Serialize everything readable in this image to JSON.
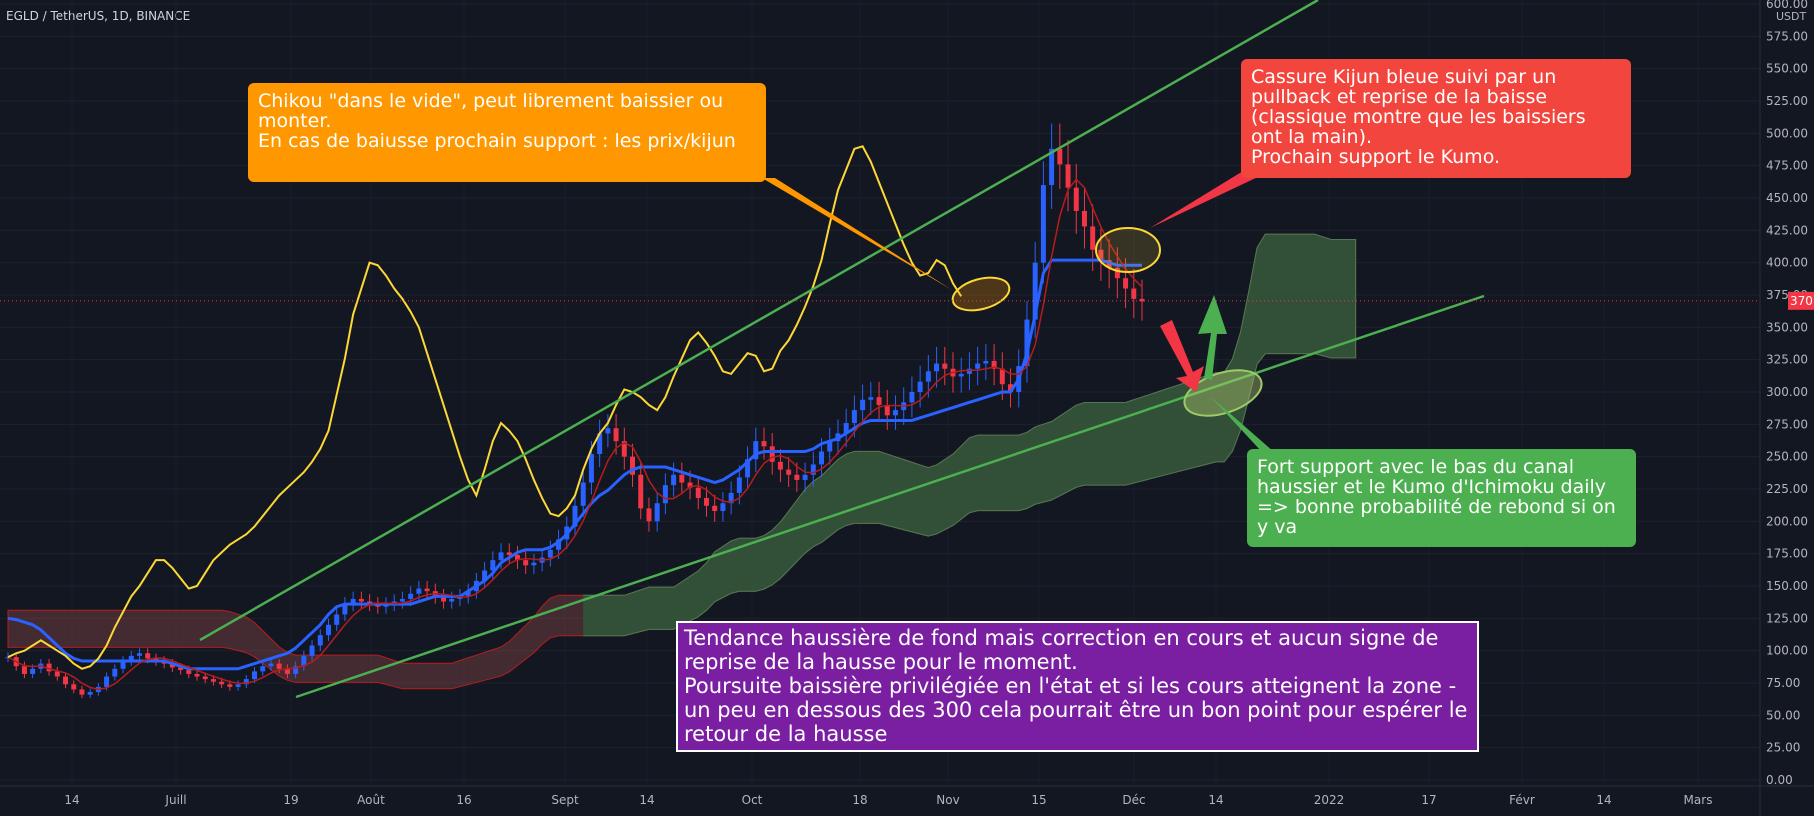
{
  "header": {
    "symbol": "EGLD / TetherUS, 1D, BINANCE",
    "unit": "USDT",
    "last_price": "370.47"
  },
  "notes": {
    "orange": "Chikou \"dans le vide\", peut librement baissier ou monter.\nEn cas de baiusse prochain support : les prix/kijun",
    "red": "Cassure Kijun bleue suivi par un pullback et reprise de la baisse (classique montre que les baissiers ont la main).\nProchain support le Kumo.",
    "green": "Fort support avec le bas du canal haussier et le Kumo d'Ichimoku daily => bonne probabilité de rebond si on y va",
    "purple": "Tendance haussière de fond mais correction en cours et aucun signe de reprise de la hausse pour le moment.\nPoursuite baissière privilégiée en l'état et si les cours atteignent la zone -un peu en dessous des 300 cela pourrait être un bon point pour espérer le retour de la hausse"
  },
  "colors": {
    "background": "#131722",
    "up": "#2962ff",
    "down": "#f23645",
    "chikou": "#fdd835",
    "kijun": "#2962ff",
    "tenkan": "#b71c1c",
    "channel": "#4caf50",
    "kumo_bear": "#a05050",
    "kumo_bull": "#2e5a3a",
    "price_tag": "#f23645"
  },
  "chart_data": {
    "type": "candlestick",
    "title": "EGLD / TetherUS, 1D, BINANCE",
    "ylim": [
      0,
      600
    ],
    "y_ticks": [
      "0.00",
      "25.00",
      "50.00",
      "75.00",
      "100.00",
      "125.00",
      "150.00",
      "175.00",
      "200.00",
      "225.00",
      "250.00",
      "275.00",
      "300.00",
      "325.00",
      "350.00",
      "375.00",
      "400.00",
      "425.00",
      "450.00",
      "475.00",
      "500.00",
      "525.00",
      "550.00",
      "575.00",
      "600.00"
    ],
    "x_ticks": [
      "14",
      "Juill",
      "19",
      "Août",
      "16",
      "Sept",
      "14",
      "Oct",
      "18",
      "Nov",
      "15",
      "Déc",
      "14",
      "2022",
      "17",
      "Févr",
      "14",
      "Mars"
    ],
    "closes": [
      95,
      88,
      82,
      86,
      90,
      84,
      80,
      74,
      70,
      66,
      68,
      72,
      80,
      86,
      92,
      96,
      98,
      94,
      92,
      90,
      87,
      85,
      82,
      80,
      78,
      76,
      74,
      72,
      74,
      78,
      84,
      88,
      90,
      86,
      82,
      88,
      96,
      104,
      112,
      120,
      128,
      136,
      140,
      138,
      136,
      134,
      136,
      138,
      140,
      144,
      148,
      146,
      142,
      138,
      140,
      142,
      146,
      154,
      162,
      170,
      176,
      174,
      170,
      166,
      168,
      172,
      178,
      186,
      196,
      212,
      230,
      252,
      268,
      272,
      262,
      250,
      236,
      210,
      200,
      214,
      228,
      236,
      230,
      226,
      218,
      212,
      208,
      214,
      222,
      234,
      248,
      262,
      258,
      246,
      240,
      236,
      232,
      236,
      244,
      254,
      262,
      268,
      276,
      286,
      294,
      296,
      290,
      282,
      286,
      292,
      300,
      308,
      316,
      322,
      318,
      312,
      314,
      318,
      322,
      324,
      318,
      306,
      300,
      320,
      356,
      400,
      460,
      488,
      476,
      458,
      440,
      428,
      410,
      402,
      396,
      388,
      380,
      372,
      370
    ],
    "kijun_values": [
      125,
      124,
      122,
      120,
      116,
      110,
      104,
      98,
      94,
      92,
      92,
      92,
      92,
      92,
      92,
      92,
      92,
      92,
      92,
      92,
      90,
      88,
      86,
      86,
      86,
      86,
      86,
      86,
      86,
      88,
      90,
      92,
      94,
      96,
      98,
      102,
      108,
      114,
      120,
      128,
      134,
      136,
      136,
      136,
      136,
      136,
      136,
      136,
      136,
      136,
      138,
      140,
      142,
      142,
      142,
      142,
      146,
      150,
      154,
      160,
      168,
      172,
      176,
      178,
      178,
      178,
      180,
      184,
      190,
      198,
      206,
      214,
      220,
      224,
      230,
      236,
      240,
      242,
      242,
      242,
      242,
      240,
      238,
      236,
      234,
      232,
      230,
      232,
      236,
      240,
      246,
      252,
      254,
      254,
      254,
      254,
      254,
      254,
      256,
      260,
      262,
      264,
      268,
      272,
      276,
      278,
      278,
      278,
      278,
      278,
      278,
      280,
      282,
      284,
      286,
      288,
      290,
      292,
      294,
      296,
      298,
      300,
      300,
      310,
      330,
      360,
      392,
      402,
      402,
      402,
      402,
      402,
      402,
      402,
      400,
      398,
      398,
      398,
      398
    ],
    "chikou_values": [
      95,
      98,
      100,
      104,
      108,
      104,
      100,
      96,
      90,
      86,
      88,
      94,
      104,
      118,
      130,
      142,
      150,
      160,
      170,
      170,
      164,
      156,
      148,
      150,
      160,
      170,
      176,
      182,
      186,
      190,
      196,
      204,
      212,
      220,
      226,
      232,
      238,
      246,
      256,
      270,
      298,
      326,
      360,
      380,
      400,
      398,
      390,
      380,
      372,
      362,
      350,
      330,
      310,
      290,
      270,
      250,
      232,
      220,
      240,
      262,
      276,
      270,
      262,
      248,
      232,
      218,
      206,
      204,
      210,
      220,
      240,
      256,
      268,
      276,
      290,
      302,
      300,
      296,
      290,
      286,
      296,
      312,
      326,
      340,
      346,
      338,
      328,
      316,
      314,
      322,
      330,
      328,
      316,
      318,
      332,
      340,
      352,
      366,
      382,
      402,
      430,
      456,
      472,
      488,
      490,
      478,
      462,
      446,
      430,
      414,
      400,
      390,
      392,
      402,
      398,
      384,
      374
    ],
    "channel_upper": {
      "from": [
        2021.53,
        107
      ],
      "to": [
        2021.99,
        600
      ]
    },
    "channel_lower": {
      "from": [
        2021.55,
        68
      ],
      "to": [
        2022.08,
        370
      ]
    },
    "last_price": 370.47
  }
}
